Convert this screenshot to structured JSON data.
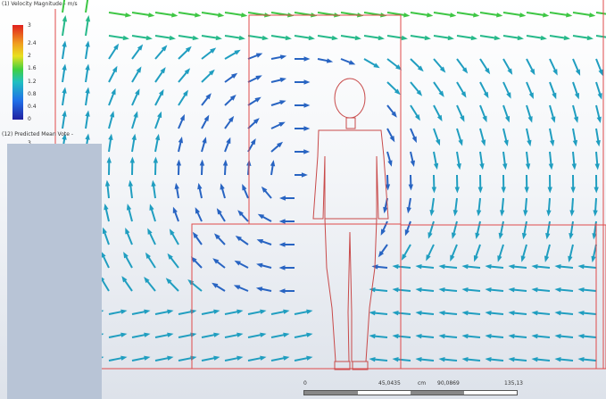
{
  "legend_velocity": {
    "title": "(1) Velocity Magnitude - m/s",
    "ticks": [
      "3",
      "2.4",
      "2",
      "1.6",
      "1.2",
      "0.8",
      "0.4",
      "0"
    ]
  },
  "legend_pmv": {
    "title": "(12) Predicted Mean Vote -",
    "tick_top": "3"
  },
  "scalebar": {
    "labels": [
      "0",
      "45,0435",
      "cm",
      "90,0869",
      "135,13"
    ]
  },
  "colors": {
    "box_lines": "#e04a4a",
    "mannequin": "#c84a4a",
    "overlay_panel": "#b8c4d6"
  }
}
